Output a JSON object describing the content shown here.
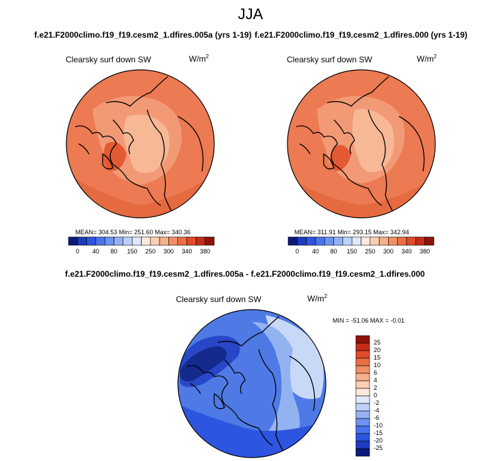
{
  "page_title": "JJA",
  "panels": [
    {
      "run_title": "f.e21.F2000climo.f19_f19.cesm2_1.dfires.005a (yrs 1-19)",
      "variable": "Clearsky surf down SW",
      "unit": "W/m",
      "unit_exp": "2",
      "stats": "MEAN= 304.53  Min= 251.60  Max= 340.36"
    },
    {
      "run_title": "f.e21.F2000climo.f19_f19.cesm2_1.dfires.000 (yrs 1-19)",
      "variable": "Clearsky surf down SW",
      "unit": "W/m",
      "unit_exp": "2",
      "stats": "MEAN= 311.91  Min= 293.15  Max= 342.94"
    }
  ],
  "abs_colorbar": {
    "labels": [
      "0",
      "40",
      "80",
      "150",
      "250",
      "300",
      "340",
      "380"
    ],
    "colors": [
      "#0b1a7a",
      "#1d3bbf",
      "#2d55e0",
      "#4a74ec",
      "#6d92f0",
      "#95b2f4",
      "#bdd0f7",
      "#e0e9fb",
      "#fde9dc",
      "#fbcfb4",
      "#f7b08c",
      "#f29068",
      "#ec6e45",
      "#e04b2a",
      "#c42d18",
      "#8e1407"
    ]
  },
  "diff": {
    "title": "f.e21.F2000climo.f19_f19.cesm2_1.dfires.005a - f.e21.F2000climo.f19_f19.cesm2_1.dfires.000",
    "variable": "Clearsky surf down SW",
    "unit": "W/m",
    "unit_exp": "2",
    "stats": "MIN = -51.06  MAX =  -0.01",
    "colorbar": {
      "labels": [
        "25",
        "20",
        "15",
        "10",
        "6",
        "4",
        "2",
        "0",
        "-2",
        "-4",
        "-6",
        "-10",
        "-15",
        "-20",
        "-25"
      ],
      "colors": [
        "#8e1407",
        "#c42d18",
        "#e04b2a",
        "#ec6e45",
        "#f29068",
        "#f7b08c",
        "#fbcfb4",
        "#fde9dc",
        "#e0e9fb",
        "#bdd0f7",
        "#95b2f4",
        "#6d92f0",
        "#4a74ec",
        "#2d55e0",
        "#1d3bbf",
        "#0b1a7a"
      ]
    }
  },
  "colors": {
    "panel_base": "#ec7a52",
    "panel_light": "#f29a76",
    "panel_lighter": "#f7b896",
    "panel_dark": "#e35a32",
    "diff_base": "#4f7ae6",
    "diff_dark": "#2847c8",
    "diff_darker": "#142a8c",
    "diff_light": "#93b2f2",
    "diff_lighter": "#c7d9f7",
    "coast": "#000000"
  }
}
